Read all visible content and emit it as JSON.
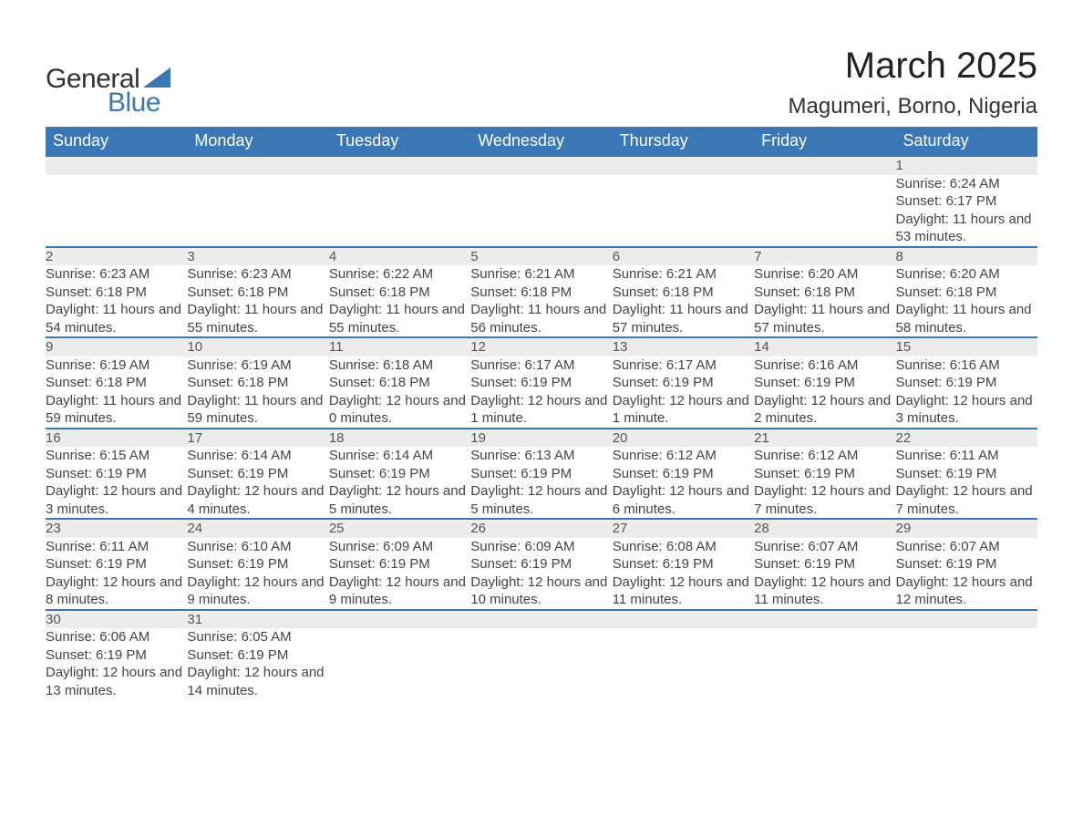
{
  "brand": {
    "general": "General",
    "blue": "Blue"
  },
  "title": "March 2025",
  "location": "Magumeri, Borno, Nigeria",
  "colors": {
    "header_bg": "#3b76b5",
    "header_text": "#ffffff",
    "daynum_bg": "#ececec",
    "daynum_text": "#555555",
    "body_text": "#444444",
    "page_bg": "#ffffff",
    "rule": "#3b76b5"
  },
  "typography": {
    "title_fontsize": 40,
    "location_fontsize": 24,
    "header_fontsize": 18,
    "daynum_fontsize": 17,
    "body_fontsize": 15,
    "logo_fontsize": 30
  },
  "weekdays": [
    "Sunday",
    "Monday",
    "Tuesday",
    "Wednesday",
    "Thursday",
    "Friday",
    "Saturday"
  ],
  "weeks": [
    [
      null,
      null,
      null,
      null,
      null,
      null,
      {
        "n": "1",
        "sr": "Sunrise: 6:24 AM",
        "ss": "Sunset: 6:17 PM",
        "dl": "Daylight: 11 hours and 53 minutes."
      }
    ],
    [
      {
        "n": "2",
        "sr": "Sunrise: 6:23 AM",
        "ss": "Sunset: 6:18 PM",
        "dl": "Daylight: 11 hours and 54 minutes."
      },
      {
        "n": "3",
        "sr": "Sunrise: 6:23 AM",
        "ss": "Sunset: 6:18 PM",
        "dl": "Daylight: 11 hours and 55 minutes."
      },
      {
        "n": "4",
        "sr": "Sunrise: 6:22 AM",
        "ss": "Sunset: 6:18 PM",
        "dl": "Daylight: 11 hours and 55 minutes."
      },
      {
        "n": "5",
        "sr": "Sunrise: 6:21 AM",
        "ss": "Sunset: 6:18 PM",
        "dl": "Daylight: 11 hours and 56 minutes."
      },
      {
        "n": "6",
        "sr": "Sunrise: 6:21 AM",
        "ss": "Sunset: 6:18 PM",
        "dl": "Daylight: 11 hours and 57 minutes."
      },
      {
        "n": "7",
        "sr": "Sunrise: 6:20 AM",
        "ss": "Sunset: 6:18 PM",
        "dl": "Daylight: 11 hours and 57 minutes."
      },
      {
        "n": "8",
        "sr": "Sunrise: 6:20 AM",
        "ss": "Sunset: 6:18 PM",
        "dl": "Daylight: 11 hours and 58 minutes."
      }
    ],
    [
      {
        "n": "9",
        "sr": "Sunrise: 6:19 AM",
        "ss": "Sunset: 6:18 PM",
        "dl": "Daylight: 11 hours and 59 minutes."
      },
      {
        "n": "10",
        "sr": "Sunrise: 6:19 AM",
        "ss": "Sunset: 6:18 PM",
        "dl": "Daylight: 11 hours and 59 minutes."
      },
      {
        "n": "11",
        "sr": "Sunrise: 6:18 AM",
        "ss": "Sunset: 6:18 PM",
        "dl": "Daylight: 12 hours and 0 minutes."
      },
      {
        "n": "12",
        "sr": "Sunrise: 6:17 AM",
        "ss": "Sunset: 6:19 PM",
        "dl": "Daylight: 12 hours and 1 minute."
      },
      {
        "n": "13",
        "sr": "Sunrise: 6:17 AM",
        "ss": "Sunset: 6:19 PM",
        "dl": "Daylight: 12 hours and 1 minute."
      },
      {
        "n": "14",
        "sr": "Sunrise: 6:16 AM",
        "ss": "Sunset: 6:19 PM",
        "dl": "Daylight: 12 hours and 2 minutes."
      },
      {
        "n": "15",
        "sr": "Sunrise: 6:16 AM",
        "ss": "Sunset: 6:19 PM",
        "dl": "Daylight: 12 hours and 3 minutes."
      }
    ],
    [
      {
        "n": "16",
        "sr": "Sunrise: 6:15 AM",
        "ss": "Sunset: 6:19 PM",
        "dl": "Daylight: 12 hours and 3 minutes."
      },
      {
        "n": "17",
        "sr": "Sunrise: 6:14 AM",
        "ss": "Sunset: 6:19 PM",
        "dl": "Daylight: 12 hours and 4 minutes."
      },
      {
        "n": "18",
        "sr": "Sunrise: 6:14 AM",
        "ss": "Sunset: 6:19 PM",
        "dl": "Daylight: 12 hours and 5 minutes."
      },
      {
        "n": "19",
        "sr": "Sunrise: 6:13 AM",
        "ss": "Sunset: 6:19 PM",
        "dl": "Daylight: 12 hours and 5 minutes."
      },
      {
        "n": "20",
        "sr": "Sunrise: 6:12 AM",
        "ss": "Sunset: 6:19 PM",
        "dl": "Daylight: 12 hours and 6 minutes."
      },
      {
        "n": "21",
        "sr": "Sunrise: 6:12 AM",
        "ss": "Sunset: 6:19 PM",
        "dl": "Daylight: 12 hours and 7 minutes."
      },
      {
        "n": "22",
        "sr": "Sunrise: 6:11 AM",
        "ss": "Sunset: 6:19 PM",
        "dl": "Daylight: 12 hours and 7 minutes."
      }
    ],
    [
      {
        "n": "23",
        "sr": "Sunrise: 6:11 AM",
        "ss": "Sunset: 6:19 PM",
        "dl": "Daylight: 12 hours and 8 minutes."
      },
      {
        "n": "24",
        "sr": "Sunrise: 6:10 AM",
        "ss": "Sunset: 6:19 PM",
        "dl": "Daylight: 12 hours and 9 minutes."
      },
      {
        "n": "25",
        "sr": "Sunrise: 6:09 AM",
        "ss": "Sunset: 6:19 PM",
        "dl": "Daylight: 12 hours and 9 minutes."
      },
      {
        "n": "26",
        "sr": "Sunrise: 6:09 AM",
        "ss": "Sunset: 6:19 PM",
        "dl": "Daylight: 12 hours and 10 minutes."
      },
      {
        "n": "27",
        "sr": "Sunrise: 6:08 AM",
        "ss": "Sunset: 6:19 PM",
        "dl": "Daylight: 12 hours and 11 minutes."
      },
      {
        "n": "28",
        "sr": "Sunrise: 6:07 AM",
        "ss": "Sunset: 6:19 PM",
        "dl": "Daylight: 12 hours and 11 minutes."
      },
      {
        "n": "29",
        "sr": "Sunrise: 6:07 AM",
        "ss": "Sunset: 6:19 PM",
        "dl": "Daylight: 12 hours and 12 minutes."
      }
    ],
    [
      {
        "n": "30",
        "sr": "Sunrise: 6:06 AM",
        "ss": "Sunset: 6:19 PM",
        "dl": "Daylight: 12 hours and 13 minutes."
      },
      {
        "n": "31",
        "sr": "Sunrise: 6:05 AM",
        "ss": "Sunset: 6:19 PM",
        "dl": "Daylight: 12 hours and 14 minutes."
      },
      null,
      null,
      null,
      null,
      null
    ]
  ]
}
